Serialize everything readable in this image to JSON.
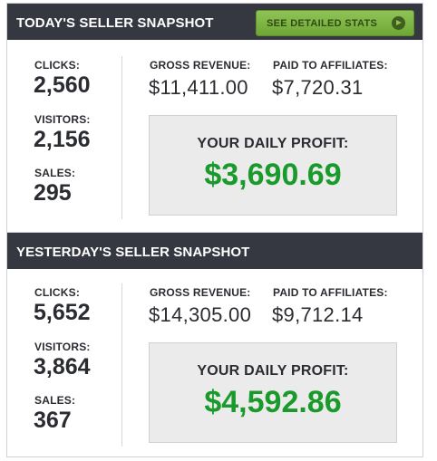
{
  "today": {
    "title": "TODAY'S SELLER SNAPSHOT",
    "stats_button_label": "SEE DETAILED STATS",
    "clicks_label": "CLICKS:",
    "clicks": "2,560",
    "visitors_label": "VISITORS:",
    "visitors": "2,156",
    "sales_label": "SALES:",
    "sales": "295",
    "gross_label": "GROSS REVENUE:",
    "gross": "$11,411.00",
    "paid_label": "PAID TO AFFILIATES:",
    "paid": "$7,720.31",
    "profit_label": "YOUR DAILY PROFIT:",
    "profit": "$3,690.69"
  },
  "yesterday": {
    "title": "YESTERDAY'S SELLER SNAPSHOT",
    "clicks_label": "CLICKS:",
    "clicks": "5,652",
    "visitors_label": "VISITORS:",
    "visitors": "3,864",
    "sales_label": "SALES:",
    "sales": "367",
    "gross_label": "GROSS REVENUE:",
    "gross": "$14,305.00",
    "paid_label": "PAID TO AFFILIATES:",
    "paid": "$9,712.14",
    "profit_label": "YOUR DAILY PROFIT:",
    "profit": "$4,592.86"
  },
  "colors": {
    "header_bg": "#363841",
    "button_green": "#7ab642",
    "profit_green": "#1a9a2a",
    "profit_box_bg": "#ebebec"
  },
  "icons": {
    "stats_button_icon": "play-circle-icon"
  }
}
